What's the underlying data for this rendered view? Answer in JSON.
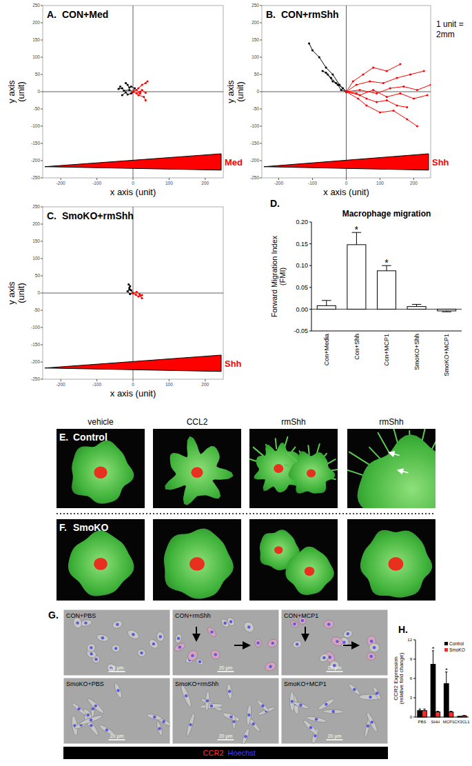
{
  "chart_data": [
    {
      "type": "line",
      "panel_label": "A.",
      "title": "CON+Med",
      "xlabel": "x axis (unit)",
      "ylabel": "y axis (unit)",
      "gradient_label": "Med",
      "xlim": [
        -250,
        250
      ],
      "ylim": [
        -250,
        250
      ],
      "xticks": [
        -200,
        -100,
        0,
        100,
        200
      ],
      "yticks": [
        -250,
        -200,
        -150,
        -100,
        -50,
        0,
        50,
        100,
        150,
        200,
        250
      ],
      "grid": false,
      "marker": "circle",
      "series": [
        {
          "color": "#000000",
          "x": [
            0,
            -10,
            -25,
            -30,
            -40,
            -35
          ],
          "y": [
            0,
            5,
            3,
            10,
            8,
            15
          ]
        },
        {
          "color": "#000000",
          "x": [
            0,
            -5,
            -15,
            -20,
            -30
          ],
          "y": [
            0,
            -5,
            -8,
            -2,
            -10
          ]
        },
        {
          "color": "#000000",
          "x": [
            0,
            5,
            -5,
            -10,
            -15,
            -20
          ],
          "y": [
            0,
            10,
            15,
            12,
            20,
            25
          ]
        },
        {
          "color": "#ff0000",
          "x": [
            0,
            10,
            20,
            15,
            30,
            35
          ],
          "y": [
            0,
            5,
            -5,
            -10,
            -15,
            -25
          ]
        },
        {
          "color": "#ff0000",
          "x": [
            0,
            15,
            25,
            35,
            40
          ],
          "y": [
            0,
            10,
            20,
            25,
            30
          ]
        },
        {
          "color": "#ff0000",
          "x": [
            0,
            10,
            20,
            25,
            35
          ],
          "y": [
            0,
            -5,
            0,
            5,
            -3
          ]
        }
      ]
    },
    {
      "type": "line",
      "panel_label": "B.",
      "title": "CON+rmShh",
      "xlabel": "x axis (unit)",
      "ylabel": "y axis (unit)",
      "gradient_label": "Shh",
      "annotation": "1 unit = 2mm",
      "xlim": [
        -250,
        250
      ],
      "ylim": [
        -250,
        250
      ],
      "xticks": [
        -200,
        -100,
        0,
        100,
        200
      ],
      "yticks": [
        -250,
        -200,
        -150,
        -100,
        -50,
        0,
        50,
        100,
        150,
        200,
        250
      ],
      "grid": false,
      "marker": "circle",
      "series": [
        {
          "color": "#000000",
          "x": [
            0,
            -20,
            -40,
            -60,
            -80,
            -100,
            -110
          ],
          "y": [
            0,
            20,
            50,
            70,
            100,
            120,
            140
          ]
        },
        {
          "color": "#000000",
          "x": [
            0,
            -10,
            -30,
            -45,
            -60,
            -70
          ],
          "y": [
            0,
            10,
            25,
            40,
            55,
            60
          ]
        },
        {
          "color": "#000000",
          "x": [
            0,
            -15,
            -25,
            -40,
            -55
          ],
          "y": [
            0,
            5,
            20,
            30,
            50
          ]
        },
        {
          "color": "#ff0000",
          "x": [
            0,
            40,
            80,
            120,
            160,
            200,
            240
          ],
          "y": [
            0,
            -10,
            5,
            -15,
            -5,
            -20,
            -10
          ]
        },
        {
          "color": "#ff0000",
          "x": [
            0,
            30,
            70,
            110,
            150,
            190,
            230
          ],
          "y": [
            0,
            20,
            30,
            25,
            40,
            50,
            60
          ]
        },
        {
          "color": "#ff0000",
          "x": [
            0,
            35,
            60,
            100,
            140,
            180,
            210
          ],
          "y": [
            0,
            -20,
            -40,
            -60,
            -55,
            -80,
            -100
          ]
        },
        {
          "color": "#ff0000",
          "x": [
            0,
            40,
            90,
            130,
            170,
            210,
            250
          ],
          "y": [
            0,
            5,
            -5,
            10,
            15,
            5,
            20
          ]
        },
        {
          "color": "#ff0000",
          "x": [
            0,
            30,
            60,
            90,
            120,
            150,
            180
          ],
          "y": [
            0,
            -5,
            -20,
            -30,
            -25,
            -40,
            -45
          ]
        },
        {
          "color": "#ff0000",
          "x": [
            0,
            20,
            50,
            80,
            120,
            160
          ],
          "y": [
            0,
            30,
            50,
            70,
            60,
            80
          ]
        }
      ]
    },
    {
      "type": "line",
      "panel_label": "C.",
      "title": "SmoKO+rmShh",
      "xlabel": "x axis (unit)",
      "ylabel": "y axis (unit)",
      "gradient_label": "Shh",
      "xlim": [
        -250,
        250
      ],
      "ylim": [
        -250,
        250
      ],
      "xticks": [
        -200,
        -100,
        0,
        100,
        200
      ],
      "yticks": [
        -250,
        -200,
        -150,
        -100,
        -50,
        0,
        50,
        100,
        150,
        200,
        250
      ],
      "grid": false,
      "marker": "circle",
      "series": [
        {
          "color": "#000000",
          "x": [
            0,
            -5,
            -10,
            -8,
            -12
          ],
          "y": [
            0,
            8,
            15,
            20,
            25
          ]
        },
        {
          "color": "#000000",
          "x": [
            0,
            -8,
            -15,
            -10
          ],
          "y": [
            0,
            -3,
            5,
            10
          ]
        },
        {
          "color": "#ff0000",
          "x": [
            0,
            8,
            15,
            20,
            25
          ],
          "y": [
            0,
            -5,
            -10,
            -8,
            -15
          ]
        },
        {
          "color": "#ff0000",
          "x": [
            0,
            10,
            18,
            25
          ],
          "y": [
            0,
            3,
            -3,
            -6
          ]
        }
      ]
    },
    {
      "type": "bar",
      "panel_label": "D.",
      "title": "Macrophage migration",
      "ylabel": "Forward Migration Index (FMI)",
      "categories": [
        "Con+Media",
        "Con+Shh",
        "Con+MCP1",
        "SmoKO+Shh",
        "SmoKO+MCP1"
      ],
      "values": [
        0.008,
        0.148,
        0.088,
        0.006,
        -0.004
      ],
      "errors": [
        0.012,
        0.028,
        0.012,
        0.005,
        0.002
      ],
      "significant": [
        false,
        true,
        true,
        false,
        false
      ],
      "significance_label": "*",
      "color": "#ffffff",
      "ylim": [
        -0.05,
        0.2
      ],
      "yticks": [
        -0.05,
        {
          "value": 0,
          "label": "0.00"
        },
        0.05,
        {
          "value": 0.1,
          "label": "0.10"
        },
        0.15,
        {
          "value": 0.2,
          "label": "0.20"
        }
      ],
      "grid": false
    },
    {
      "type": "bar",
      "panel_label": "H.",
      "ylabel": "CCR2 Expression (relative fold change)",
      "categories": [
        "PBS",
        "SHH",
        "MCP1",
        "CX3CL1"
      ],
      "series": [
        {
          "name": "Control",
          "color": "#000000",
          "values": [
            1.0,
            8.2,
            5.2,
            0.1
          ],
          "errors": [
            0.25,
            2.1,
            1.8,
            0.02
          ],
          "significant": [
            false,
            true,
            true,
            false
          ]
        },
        {
          "name": "SmoKO",
          "color": "#ff2a2a",
          "values": [
            1.0,
            0.8,
            0.8,
            0.2
          ],
          "errors": [
            0.25,
            0.1,
            0.1,
            0.05
          ],
          "significant": [
            false,
            false,
            false,
            false
          ]
        }
      ],
      "significance_label": "*",
      "ylim": [
        0,
        12
      ],
      "yticks": [
        0,
        3,
        6,
        9,
        12
      ],
      "legend": "top-right",
      "grid": false
    }
  ],
  "micrographs": {
    "E": {
      "panel_label": "E.",
      "row_label": "Control",
      "columns": [
        "vehicle",
        "CCL2",
        "rmShh",
        "rmShh"
      ]
    },
    "F": {
      "panel_label": "F.",
      "row_label": "SmoKO"
    },
    "G": {
      "panel_label": "G.",
      "cells": [
        [
          "CON+PBS",
          "CON+rmShh",
          "CON+MCP1"
        ],
        [
          "SmoKO+PBS",
          "SmoKO+rmShh",
          "SmoKO+MCP1"
        ]
      ],
      "scale_bar": "20 μm",
      "stain_legend": [
        {
          "text": "CCR2",
          "color": "#ff3030"
        },
        {
          "text": "Hoechst",
          "color": "#4040ff"
        }
      ]
    }
  }
}
